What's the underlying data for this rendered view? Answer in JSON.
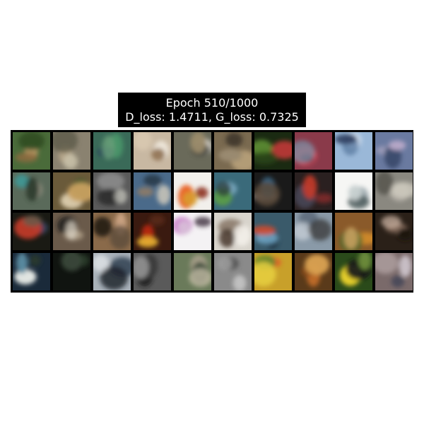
{
  "title": {
    "line1": "Epoch 510/1000",
    "line2": "D_loss: 1.4711, G_loss: 0.7325"
  },
  "grid": {
    "rows": 4,
    "cols": 10,
    "tiles": [
      {
        "bg": "#4a6b3a",
        "blobs": [
          {
            "c": "#c9a26a"
          },
          {
            "c": "#2d4a22"
          },
          {
            "c": "#8c6a3e"
          }
        ]
      },
      {
        "bg": "#8a8270",
        "blobs": [
          {
            "c": "#b8a78a"
          },
          {
            "c": "#5c5a48"
          },
          {
            "c": "#c8c0a8"
          }
        ]
      },
      {
        "bg": "#3a6a58",
        "blobs": [
          {
            "c": "#4a9a6a"
          },
          {
            "c": "#2a4a5a"
          },
          {
            "c": "#6aa07a"
          }
        ]
      },
      {
        "bg": "#c8b8a2",
        "blobs": [
          {
            "c": "#f2ece2"
          },
          {
            "c": "#8a6a4a"
          },
          {
            "c": "#d8c8b0"
          }
        ]
      },
      {
        "bg": "#6a6a5a",
        "blobs": [
          {
            "c": "#d8d4cc"
          },
          {
            "c": "#3a3a32"
          },
          {
            "c": "#9a8a6a"
          }
        ]
      },
      {
        "bg": "#7a6a50",
        "blobs": [
          {
            "c": "#b8a07a"
          },
          {
            "c": "#3a3028"
          },
          {
            "c": "#9a8a70"
          }
        ]
      },
      {
        "bg": "#1a2a12",
        "blobs": [
          {
            "c": "#6aa03a"
          },
          {
            "c": "#c83a3a"
          },
          {
            "c": "#2a4a1a"
          }
        ]
      },
      {
        "bg": "#8a3a4a",
        "blobs": [
          {
            "c": "#d84a5a"
          },
          {
            "c": "#4a2a3a"
          },
          {
            "c": "#7a8aa0"
          }
        ]
      },
      {
        "bg": "#9ab8d8",
        "blobs": [
          {
            "c": "#d8e4f2"
          },
          {
            "c": "#5a7aa0"
          },
          {
            "c": "#2a3a5a"
          }
        ]
      },
      {
        "bg": "#6a7aa0",
        "blobs": [
          {
            "c": "#9a9ab8"
          },
          {
            "c": "#3a4a6a"
          },
          {
            "c": "#b8a8c8"
          }
        ]
      },
      {
        "bg": "#5a6a5a",
        "blobs": [
          {
            "c": "#3aa0a0"
          },
          {
            "c": "#8a8a7a"
          },
          {
            "c": "#2a3a2a"
          }
        ]
      },
      {
        "bg": "#6a5a3a",
        "blobs": [
          {
            "c": "#d8c8a8"
          },
          {
            "c": "#3a5a2a"
          },
          {
            "c": "#c8a060"
          }
        ]
      },
      {
        "bg": "#5a5a5a",
        "blobs": [
          {
            "c": "#8a8a8a"
          },
          {
            "c": "#2a2a2a"
          },
          {
            "c": "#b8b8b0"
          }
        ]
      },
      {
        "bg": "#4a6a8a",
        "blobs": [
          {
            "c": "#d8d0c0"
          },
          {
            "c": "#8a7a6a"
          },
          {
            "c": "#2a3a4a"
          }
        ]
      },
      {
        "bg": "#f2f0ec",
        "blobs": [
          {
            "c": "#e85a1a"
          },
          {
            "c": "#d8a030"
          },
          {
            "c": "#8a2a1a"
          }
        ]
      },
      {
        "bg": "#3a6a7a",
        "blobs": [
          {
            "c": "#8ab8d0"
          },
          {
            "c": "#5a9a4a"
          },
          {
            "c": "#2a3a3a"
          }
        ]
      },
      {
        "bg": "#1a1a1a",
        "blobs": [
          {
            "c": "#8a8a8a"
          },
          {
            "c": "#3a6a8a"
          },
          {
            "c": "#5a4a3a"
          }
        ]
      },
      {
        "bg": "#2a2020",
        "blobs": [
          {
            "c": "#8a2a2a"
          },
          {
            "c": "#4a4a5a"
          },
          {
            "c": "#c83a2a"
          }
        ]
      },
      {
        "bg": "#f6f6f4",
        "blobs": [
          {
            "c": "#8a9aa0"
          },
          {
            "c": "#4a5a5a"
          },
          {
            "c": "#c8d0d0"
          }
        ]
      },
      {
        "bg": "#8a8880",
        "blobs": [
          {
            "c": "#b8b4aa"
          },
          {
            "c": "#5a5852"
          },
          {
            "c": "#d0ccc0"
          }
        ]
      },
      {
        "bg": "#1a1a14",
        "blobs": [
          {
            "c": "#3a4a6a"
          },
          {
            "c": "#c83a2a"
          },
          {
            "c": "#6a5a4a"
          }
        ]
      },
      {
        "bg": "#6a5a4a",
        "blobs": [
          {
            "c": "#1a1a1a"
          },
          {
            "c": "#b8a890"
          },
          {
            "c": "#d8d0c0"
          }
        ]
      },
      {
        "bg": "#8a6a4a",
        "blobs": [
          {
            "c": "#2a2018"
          },
          {
            "c": "#c8a080"
          },
          {
            "c": "#5a4a3a"
          }
        ]
      },
      {
        "bg": "#3a1a10",
        "blobs": [
          {
            "c": "#c82a10"
          },
          {
            "c": "#e8b030"
          },
          {
            "c": "#5a2a1a"
          }
        ]
      },
      {
        "bg": "#f4f2f4",
        "blobs": [
          {
            "c": "#c878c8"
          },
          {
            "c": "#3a2a3a"
          },
          {
            "c": "#d8c8d8"
          }
        ]
      },
      {
        "bg": "#d8d4cc",
        "blobs": [
          {
            "c": "#8a7a6a"
          },
          {
            "c": "#f4f0ea"
          },
          {
            "c": "#4a3a30"
          }
        ]
      },
      {
        "bg": "#3a5a6a",
        "blobs": [
          {
            "c": "#1a2a3a"
          },
          {
            "c": "#6aa0c0"
          },
          {
            "c": "#d84a2a"
          }
        ]
      },
      {
        "bg": "#8a9aa8",
        "blobs": [
          {
            "c": "#5a6a7a"
          },
          {
            "c": "#c8d0d8"
          },
          {
            "c": "#3a3a3a"
          }
        ]
      },
      {
        "bg": "#8a5a2a",
        "blobs": [
          {
            "c": "#d8902a"
          },
          {
            "c": "#4a6a2a"
          },
          {
            "c": "#c8a060"
          }
        ]
      },
      {
        "bg": "#2a2018",
        "blobs": [
          {
            "c": "#8a7060"
          },
          {
            "c": "#c8b0a0"
          },
          {
            "c": "#1a1410"
          }
        ]
      },
      {
        "bg": "#1a2a3a",
        "blobs": [
          {
            "c": "#e8ece8"
          },
          {
            "c": "#5a8aa0"
          },
          {
            "c": "#2a3a2a"
          }
        ]
      },
      {
        "bg": "#101410",
        "blobs": [
          {
            "c": "#2a3a2a"
          },
          {
            "c": "#1a1a1a"
          },
          {
            "c": "#3a4a3a"
          }
        ]
      },
      {
        "bg": "#a8b0b8",
        "blobs": [
          {
            "c": "#3a4a5a"
          },
          {
            "c": "#d8dce0"
          },
          {
            "c": "#1a2028"
          }
        ]
      },
      {
        "bg": "#5a5a5a",
        "blobs": [
          {
            "c": "#1a1a1a"
          },
          {
            "c": "#3a3a3a"
          },
          {
            "c": "#8a8a8a"
          }
        ]
      },
      {
        "bg": "#6a7a5a",
        "blobs": [
          {
            "c": "#a8a08a"
          },
          {
            "c": "#3a4a3a"
          },
          {
            "c": "#c8c0a8"
          }
        ]
      },
      {
        "bg": "#8a8a8a",
        "blobs": [
          {
            "c": "#c8c8c8"
          },
          {
            "c": "#4a4a4a"
          },
          {
            "c": "#a0a0a0"
          }
        ]
      },
      {
        "bg": "#c8a02a",
        "blobs": [
          {
            "c": "#e84a2a"
          },
          {
            "c": "#5a8a2a"
          },
          {
            "c": "#e8d040"
          }
        ]
      },
      {
        "bg": "#5a3a1a",
        "blobs": [
          {
            "c": "#c8702a"
          },
          {
            "c": "#8a4a1a"
          },
          {
            "c": "#d8a050"
          }
        ]
      },
      {
        "bg": "#2a4a1a",
        "blobs": [
          {
            "c": "#e8d02a"
          },
          {
            "c": "#1a1a1a"
          },
          {
            "c": "#6a8a3a"
          }
        ]
      },
      {
        "bg": "#7a6a6a",
        "blobs": [
          {
            "c": "#d8d0d8"
          },
          {
            "c": "#4a4a5a"
          },
          {
            "c": "#a89898"
          }
        ]
      }
    ]
  }
}
